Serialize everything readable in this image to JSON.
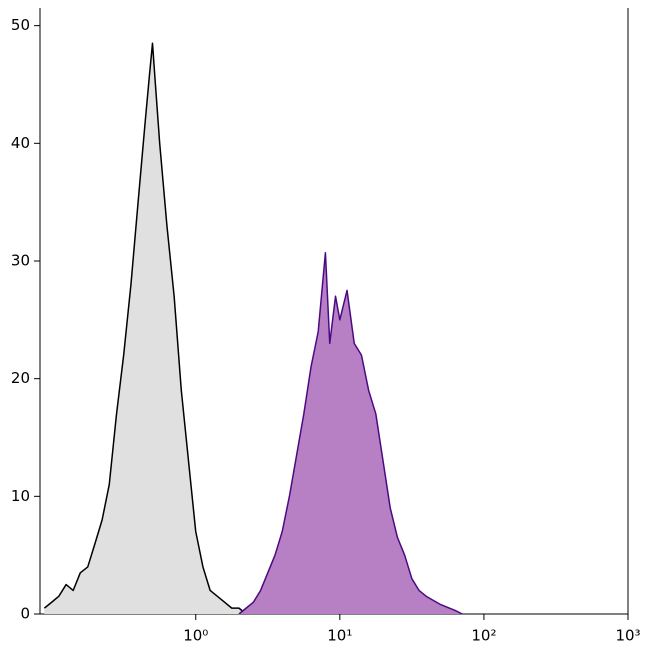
{
  "chart_data": {
    "type": "area",
    "x_scale": "log",
    "series": [
      {
        "color": "#000000",
        "fill_color": "#e0e0e0",
        "x": [
          0.089,
          0.1,
          0.112,
          0.126,
          0.141,
          0.158,
          0.178,
          0.2,
          0.224,
          0.251,
          0.282,
          0.316,
          0.355,
          0.398,
          0.447,
          0.479,
          0.501,
          0.525,
          0.562,
          0.631,
          0.708,
          0.794,
          0.891,
          1,
          1.122,
          1.259,
          1.413,
          1.585,
          1.778,
          1.995,
          2.239
        ],
        "values": [
          0.5,
          1,
          1.5,
          2.5,
          2,
          3.5,
          4,
          6,
          8,
          11,
          17,
          22,
          28,
          35,
          42,
          46,
          48.5,
          45,
          40,
          33,
          27,
          19,
          13,
          7,
          4,
          2,
          1.5,
          1,
          0.5,
          0.5,
          0
        ]
      },
      {
        "color": "#4b0a82",
        "fill_color": "#b77fc4",
        "x": [
          1.995,
          2.239,
          2.512,
          2.818,
          3.162,
          3.548,
          3.981,
          4.467,
          5.012,
          5.623,
          6.31,
          7.079,
          7.943,
          8.511,
          9.333,
          10,
          11.22,
          12.59,
          14.13,
          15.85,
          17.78,
          19.95,
          22.39,
          25.12,
          28.18,
          31.62,
          35.48,
          39.81,
          50.12,
          63.1,
          70.79
        ],
        "values": [
          0,
          0.5,
          1,
          2,
          3.5,
          5,
          7,
          10,
          13.5,
          17,
          21,
          24,
          30.7,
          23,
          27,
          25,
          27.5,
          23,
          22,
          19,
          17,
          13,
          9,
          6.5,
          5,
          3,
          2,
          1.5,
          0.8,
          0.3,
          0
        ]
      }
    ],
    "xlim": [
      0.083,
      1000
    ],
    "xticks": [
      {
        "value": 1,
        "label": "10⁰"
      },
      {
        "value": 10,
        "label": "10¹"
      },
      {
        "value": 100,
        "label": "10²"
      },
      {
        "value": 1000,
        "label": "10³"
      }
    ],
    "ylim": [
      0,
      51.5
    ],
    "yticks": [
      0,
      10,
      20,
      30,
      40,
      50
    ]
  }
}
